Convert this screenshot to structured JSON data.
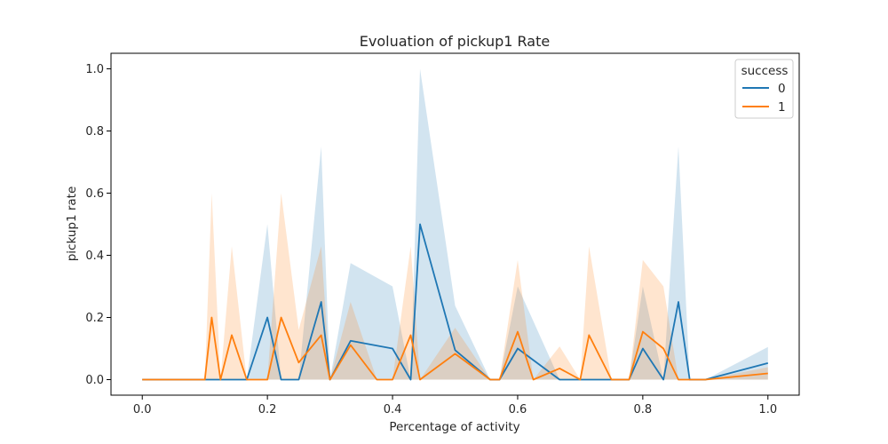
{
  "chart_data": {
    "type": "line",
    "title": "Evoluation of pickup1 Rate",
    "xlabel": "Percentage of activity",
    "ylabel": "pickup1 rate",
    "xlim": [
      -0.05,
      1.05
    ],
    "ylim": [
      -0.05,
      1.05
    ],
    "xticks": [
      "0.0",
      "0.2",
      "0.4",
      "0.6",
      "0.8",
      "1.0"
    ],
    "yticks": [
      "0.0",
      "0.2",
      "0.4",
      "0.6",
      "0.8",
      "1.0"
    ],
    "grid": false,
    "legend": {
      "title": "success",
      "placement": "top-right"
    },
    "series": [
      {
        "name": "0",
        "color": "#1f77b4",
        "band_color": "#1f77b4",
        "x": [
          0.0,
          0.1,
          0.111,
          0.125,
          0.143,
          0.167,
          0.2,
          0.222,
          0.25,
          0.286,
          0.3,
          0.333,
          0.4,
          0.429,
          0.444,
          0.5,
          0.556,
          0.571,
          0.6,
          0.667,
          0.7,
          0.714,
          0.75,
          0.778,
          0.8,
          0.833,
          0.857,
          0.875,
          0.889,
          0.9,
          1.0
        ],
        "y": [
          0.0,
          0.0,
          0.0,
          0.0,
          0.0,
          0.0,
          0.2,
          0.0,
          0.0,
          0.25,
          0.0,
          0.125,
          0.1,
          0.0,
          0.5,
          0.095,
          0.0,
          0.0,
          0.1,
          0.0,
          0.0,
          0.0,
          0.0,
          0.0,
          0.1,
          0.0,
          0.25,
          0.0,
          0.0,
          0.0,
          0.053
        ],
        "lower": [
          0.0,
          0.0,
          0.0,
          0.0,
          0.0,
          0.0,
          0.0,
          0.0,
          0.0,
          0.0,
          0.0,
          0.0,
          0.0,
          0.0,
          0.0,
          0.0,
          0.0,
          0.0,
          0.0,
          0.0,
          0.0,
          0.0,
          0.0,
          0.0,
          0.0,
          0.0,
          0.0,
          0.0,
          0.0,
          0.0,
          0.0
        ],
        "upper": [
          0.0,
          0.0,
          0.0,
          0.0,
          0.0,
          0.0,
          0.5,
          0.0,
          0.0,
          0.75,
          0.0,
          0.375,
          0.3,
          0.0,
          1.0,
          0.238,
          0.0,
          0.0,
          0.3,
          0.0,
          0.0,
          0.0,
          0.0,
          0.0,
          0.3,
          0.0,
          0.75,
          0.0,
          0.0,
          0.0,
          0.105
        ]
      },
      {
        "name": "1",
        "color": "#ff7f0e",
        "band_color": "#ff7f0e",
        "x": [
          0.0,
          0.1,
          0.111,
          0.125,
          0.143,
          0.167,
          0.2,
          0.222,
          0.25,
          0.286,
          0.3,
          0.333,
          0.375,
          0.4,
          0.429,
          0.444,
          0.5,
          0.556,
          0.571,
          0.6,
          0.625,
          0.667,
          0.7,
          0.714,
          0.75,
          0.778,
          0.8,
          0.833,
          0.857,
          0.889,
          0.9,
          1.0
        ],
        "y": [
          0.0,
          0.0,
          0.2,
          0.0,
          0.143,
          0.0,
          0.0,
          0.2,
          0.055,
          0.143,
          0.0,
          0.111,
          0.0,
          0.0,
          0.143,
          0.0,
          0.083,
          0.0,
          0.0,
          0.154,
          0.0,
          0.036,
          0.0,
          0.143,
          0.0,
          0.0,
          0.154,
          0.1,
          0.0,
          0.0,
          0.0,
          0.02
        ],
        "lower": [
          0.0,
          0.0,
          0.0,
          0.0,
          0.0,
          0.0,
          0.0,
          0.0,
          0.0,
          0.0,
          0.0,
          0.0,
          0.0,
          0.0,
          0.0,
          0.0,
          0.0,
          0.0,
          0.0,
          0.0,
          0.0,
          0.0,
          0.0,
          0.0,
          0.0,
          0.0,
          0.0,
          0.0,
          0.0,
          0.0,
          0.0,
          0.0
        ],
        "upper": [
          0.0,
          0.0,
          0.6,
          0.0,
          0.429,
          0.0,
          0.0,
          0.6,
          0.16,
          0.429,
          0.0,
          0.25,
          0.0,
          0.0,
          0.429,
          0.0,
          0.167,
          0.0,
          0.0,
          0.385,
          0.0,
          0.107,
          0.0,
          0.429,
          0.0,
          0.0,
          0.385,
          0.3,
          0.0,
          0.0,
          0.0,
          0.04
        ]
      }
    ]
  }
}
